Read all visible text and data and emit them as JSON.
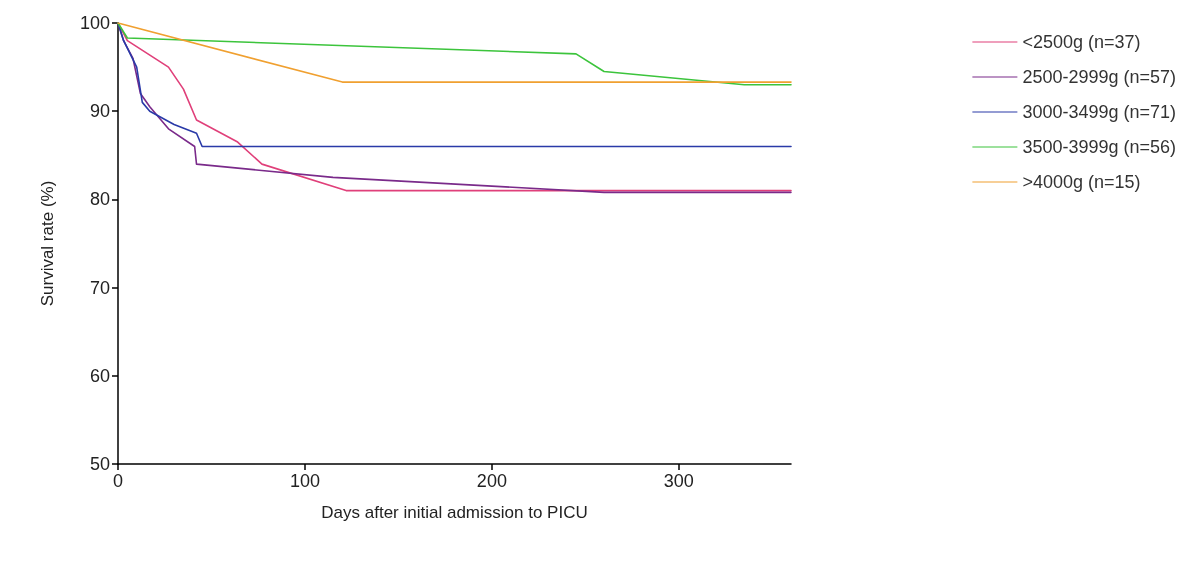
{
  "chart_data": {
    "type": "line",
    "xlabel": "Days after initial admission to PICU",
    "ylabel": "Survival rate (%)",
    "xlim": [
      0,
      360
    ],
    "xticks": [
      0,
      100,
      200,
      300
    ],
    "ylim": [
      50,
      100
    ],
    "yticks": [
      50,
      60,
      70,
      80,
      90,
      100
    ],
    "grid": false,
    "legend": "right",
    "marker": "none",
    "line_style": "solid",
    "series": [
      {
        "name": "<2500g (n=37)",
        "color": "#e0407a",
        "x": [
          0,
          5,
          27,
          35,
          42,
          64,
          77,
          122,
          360
        ],
        "values": [
          100,
          98,
          95,
          92.5,
          89,
          86.5,
          84,
          81,
          81
        ]
      },
      {
        "name": "2500-2999g (n=57)",
        "color": "#7a2a8a",
        "x": [
          0,
          3,
          8,
          12,
          17,
          27,
          41,
          42,
          115,
          260,
          360
        ],
        "values": [
          100,
          98,
          96,
          92,
          90.5,
          88,
          86,
          84,
          82.5,
          80.8,
          80.8
        ]
      },
      {
        "name": "3000-3499g (n=71)",
        "color": "#2a3aa8",
        "x": [
          0,
          3,
          10,
          13,
          17,
          30,
          42,
          45,
          360
        ],
        "values": [
          100,
          98,
          95,
          91,
          90,
          88.5,
          87.5,
          86,
          86
        ]
      },
      {
        "name": "3500-3999g (n=56)",
        "color": "#3cc43c",
        "x": [
          0,
          5,
          245,
          260,
          335,
          360
        ],
        "values": [
          100,
          98.3,
          96.5,
          94.5,
          93,
          93
        ]
      },
      {
        "name": ">4000g (n=15)",
        "color": "#f0a030",
        "x": [
          0,
          120,
          360
        ],
        "values": [
          100,
          93.3,
          93.3
        ]
      }
    ]
  }
}
